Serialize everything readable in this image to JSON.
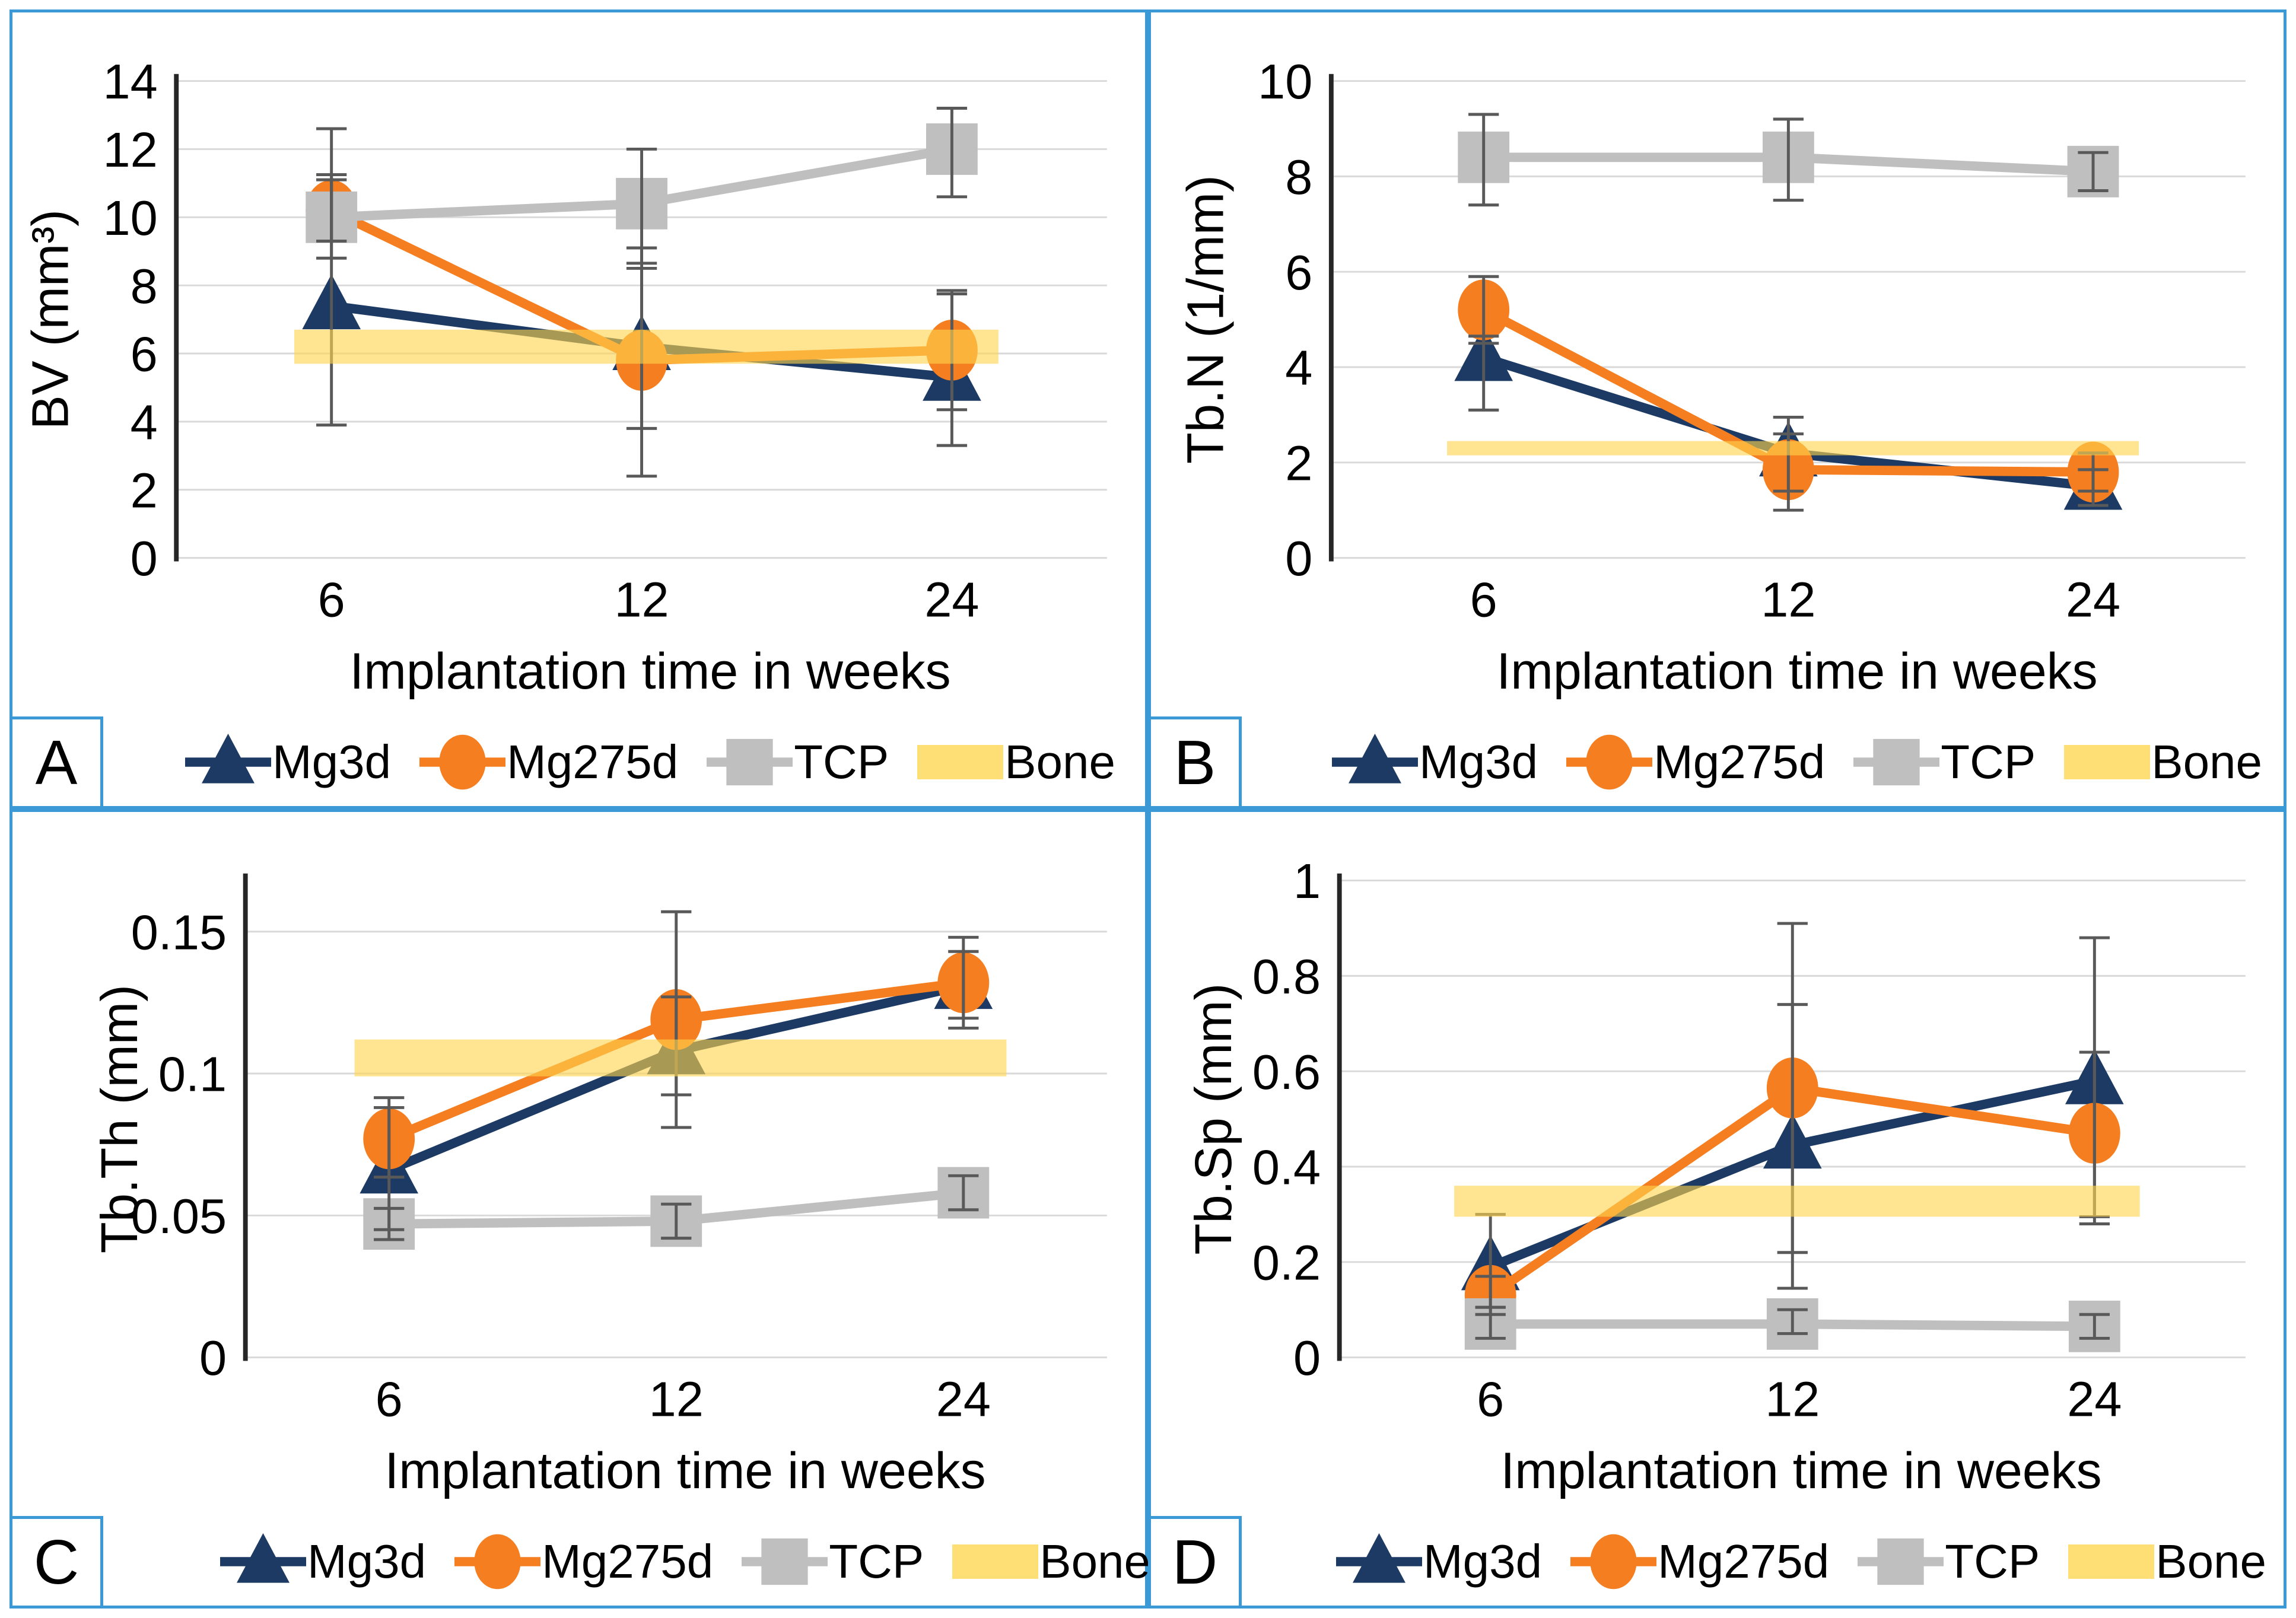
{
  "figure": {
    "border_color": "#3b9ad6",
    "grid_color": "#d9d9d9",
    "axis_color": "#262626",
    "error_bar_color": "#595959",
    "bone_band_color": "#ffd34d",
    "bone_legend_color": "#fedf76",
    "legend": [
      {
        "name": "Mg3d",
        "marker": "triangle",
        "color": "#1c3a63"
      },
      {
        "name": "Mg275d",
        "marker": "circle",
        "color": "#f57e20"
      },
      {
        "name": "TCP",
        "marker": "square",
        "color": "#bfbfbf"
      },
      {
        "name": "Bone",
        "marker": "band",
        "color": "#fedf76"
      }
    ]
  },
  "chart_data": [
    {
      "id": "A",
      "type": "line",
      "xlabel": "Implantation time in weeks",
      "ylabel": "BV (mm³)",
      "categories": [
        6,
        12,
        24
      ],
      "x_tick_labels": [
        "6",
        "12",
        "24"
      ],
      "ylim": [
        0,
        14
      ],
      "yticks": [
        0,
        2,
        4,
        6,
        8,
        10,
        12,
        14
      ],
      "ytick_labels": [
        "0",
        "2",
        "4",
        "6",
        "8",
        "10",
        "12",
        "14"
      ],
      "grid": true,
      "legend_position": "bottom",
      "series": [
        {
          "name": "Mg3d",
          "values": [
            7.4,
            6.2,
            5.3
          ],
          "err_low": [
            3.9,
            3.8,
            3.3
          ],
          "err_high": [
            11.1,
            8.5,
            7.75
          ]
        },
        {
          "name": "Mg275d",
          "values": [
            10.2,
            5.8,
            6.1
          ],
          "err_low": [
            8.8,
            2.4,
            4.35
          ],
          "err_high": [
            11.25,
            9.1,
            7.85
          ]
        },
        {
          "name": "TCP",
          "values": [
            10.0,
            10.4,
            12.0
          ],
          "err_low": [
            9.3,
            8.65,
            10.6
          ],
          "err_high": [
            12.6,
            12.0,
            13.2
          ]
        }
      ],
      "bone_band": {
        "low": 5.7,
        "high": 6.7
      }
    },
    {
      "id": "B",
      "type": "line",
      "xlabel": "Implantation time in weeks",
      "ylabel": "Tb.N (1/mm)",
      "categories": [
        6,
        12,
        24
      ],
      "x_tick_labels": [
        "6",
        "12",
        "24"
      ],
      "ylim": [
        0,
        10
      ],
      "yticks": [
        0,
        2,
        4,
        6,
        8,
        10
      ],
      "ytick_labels": [
        "0",
        "2",
        "4",
        "6",
        "8",
        "10"
      ],
      "grid": true,
      "legend_position": "bottom",
      "series": [
        {
          "name": "Mg3d",
          "values": [
            4.2,
            2.2,
            1.5
          ],
          "err_low": [
            3.1,
            1.4,
            1.1
          ],
          "err_high": [
            4.65,
            2.95,
            1.85
          ]
        },
        {
          "name": "Mg275d",
          "values": [
            5.2,
            1.85,
            1.8
          ],
          "err_low": [
            4.5,
            1.0,
            1.4
          ],
          "err_high": [
            5.9,
            2.6,
            2.2
          ]
        },
        {
          "name": "TCP",
          "values": [
            8.4,
            8.4,
            8.1
          ],
          "err_low": [
            7.4,
            7.5,
            7.7
          ],
          "err_high": [
            9.3,
            9.2,
            8.5
          ]
        }
      ],
      "bone_band": {
        "low": 2.15,
        "high": 2.45
      }
    },
    {
      "id": "C",
      "type": "line",
      "xlabel": "Implantation time in weeks",
      "ylabel": "Tb.Th (mm)",
      "categories": [
        6,
        12,
        24
      ],
      "x_tick_labels": [
        "6",
        "12",
        "24"
      ],
      "ylim": [
        0,
        0.168
      ],
      "yticks": [
        0,
        0.05,
        0.1,
        0.15
      ],
      "ytick_labels": [
        "0",
        "0.05",
        "0.1",
        "0.15"
      ],
      "grid": true,
      "legend_position": "bottom",
      "series": [
        {
          "name": "Mg3d",
          "values": [
            0.066,
            0.108,
            0.131
          ],
          "err_low": [
            0.045,
            0.081,
            0.1195
          ],
          "err_high": [
            0.088,
            0.157,
            0.143
          ]
        },
        {
          "name": "Mg275d",
          "values": [
            0.077,
            0.119,
            0.132
          ],
          "err_low": [
            0.0635,
            0.0925,
            0.116
          ],
          "err_high": [
            0.0915,
            0.127,
            0.148
          ]
        },
        {
          "name": "TCP",
          "values": [
            0.047,
            0.048,
            0.058
          ],
          "err_low": [
            0.0415,
            0.042,
            0.052
          ],
          "err_high": [
            0.0525,
            0.054,
            0.064
          ]
        }
      ],
      "bone_band": {
        "low": 0.099,
        "high": 0.112
      }
    },
    {
      "id": "D",
      "type": "line",
      "xlabel": "Implantation time in weeks",
      "ylabel": "Tb.Sp (mm)",
      "categories": [
        6,
        12,
        24
      ],
      "x_tick_labels": [
        "6",
        "12",
        "24"
      ],
      "ylim": [
        0,
        1
      ],
      "yticks": [
        0,
        0.2,
        0.4,
        0.6,
        0.8,
        1
      ],
      "ytick_labels": [
        "0",
        "0.2",
        "0.4",
        "0.6",
        "0.8",
        "1"
      ],
      "grid": true,
      "legend_position": "bottom",
      "series": [
        {
          "name": "Mg3d",
          "values": [
            0.19,
            0.445,
            0.58
          ],
          "err_low": [
            0.105,
            0.145,
            0.28
          ],
          "err_high": [
            0.3,
            0.74,
            0.88
          ]
        },
        {
          "name": "Mg275d",
          "values": [
            0.13,
            0.565,
            0.47
          ],
          "err_low": [
            0.09,
            0.22,
            0.295
          ],
          "err_high": [
            0.17,
            0.91,
            0.64
          ]
        },
        {
          "name": "TCP",
          "values": [
            0.07,
            0.07,
            0.065
          ],
          "err_low": [
            0.04,
            0.05,
            0.04
          ],
          "err_high": [
            0.105,
            0.1,
            0.09
          ]
        }
      ],
      "bone_band": {
        "low": 0.295,
        "high": 0.36
      }
    }
  ]
}
